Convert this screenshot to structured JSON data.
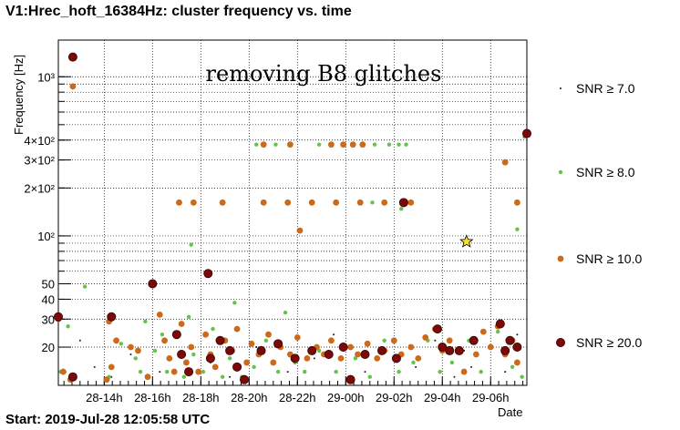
{
  "chart_data": {
    "type": "scatter",
    "title": "V1:Hrec_hoft_16384Hz: cluster frequency vs. time",
    "xlabel": "Date",
    "ylabel": "Frequency [Hz]",
    "start_label": "Start: 2019-Jul-28 12:05:58 UTC",
    "annotation": "removing  B8  glitches",
    "x_unit": "hours since start",
    "xlim": [
      0,
      19.4
    ],
    "ylim": [
      11.5,
      1700
    ],
    "yscale": "log",
    "grid": true,
    "legend_placement": "right",
    "x_ticks": [
      {
        "value": 1.9,
        "label": "28-14h"
      },
      {
        "value": 3.9,
        "label": "28-16h"
      },
      {
        "value": 5.9,
        "label": "28-18h"
      },
      {
        "value": 7.9,
        "label": "28-20h"
      },
      {
        "value": 9.9,
        "label": "28-22h"
      },
      {
        "value": 11.9,
        "label": "29-00h"
      },
      {
        "value": 13.9,
        "label": "29-02h"
      },
      {
        "value": 15.9,
        "label": "29-04h"
      },
      {
        "value": 17.9,
        "label": "29-06h"
      }
    ],
    "y_ticks": [
      {
        "value": 20,
        "label": "20"
      },
      {
        "value": 30,
        "label": "30"
      },
      {
        "value": 40,
        "label": "40"
      },
      {
        "value": 50,
        "label": "50"
      },
      {
        "value": 100,
        "label": "10²"
      },
      {
        "value": 200,
        "label": "2×10²"
      },
      {
        "value": 300,
        "label": "3×10²"
      },
      {
        "value": 400,
        "label": "4×10²"
      },
      {
        "value": 1000,
        "label": "10³"
      }
    ],
    "series": [
      {
        "name": "SNR ≥ 7.0",
        "color": "#1a1a1a",
        "marker_size": 1,
        "points": [
          [
            0.3,
            14
          ],
          [
            0.9,
            22
          ],
          [
            1.5,
            15
          ],
          [
            2.2,
            13
          ],
          [
            3.0,
            18
          ],
          [
            4.2,
            14
          ],
          [
            5.0,
            25
          ],
          [
            6.3,
            16
          ],
          [
            7.1,
            13
          ],
          [
            8.2,
            20
          ],
          [
            9.5,
            14
          ],
          [
            10.6,
            17
          ],
          [
            11.4,
            24
          ],
          [
            12.7,
            14
          ],
          [
            13.6,
            19
          ],
          [
            14.8,
            15
          ],
          [
            15.6,
            22
          ],
          [
            16.4,
            13
          ],
          [
            17.3,
            18
          ],
          [
            18.5,
            14
          ],
          [
            19.0,
            24
          ],
          [
            16.8,
            19
          ],
          [
            17.1,
            15
          ]
        ]
      },
      {
        "name": "SNR ≥ 8.0",
        "color": "#66c150",
        "marker_size": 2.2,
        "points": [
          [
            1.1,
            48
          ],
          [
            0.1,
            14
          ],
          [
            0.4,
            27
          ],
          [
            0.6,
            13
          ],
          [
            2.1,
            13
          ],
          [
            2.6,
            21
          ],
          [
            3.2,
            17
          ],
          [
            3.4,
            14
          ],
          [
            3.6,
            29
          ],
          [
            4.0,
            19
          ],
          [
            4.3,
            24
          ],
          [
            4.5,
            14
          ],
          [
            5.2,
            13
          ],
          [
            5.4,
            31
          ],
          [
            5.6,
            18
          ],
          [
            6.0,
            14
          ],
          [
            6.4,
            26
          ],
          [
            6.8,
            13
          ],
          [
            7.1,
            17
          ],
          [
            7.3,
            38
          ],
          [
            7.6,
            13
          ],
          [
            8.1,
            15
          ],
          [
            8.6,
            22
          ],
          [
            9.1,
            14
          ],
          [
            9.4,
            33
          ],
          [
            9.8,
            16
          ],
          [
            10.2,
            14
          ],
          [
            10.8,
            19
          ],
          [
            11.5,
            14
          ],
          [
            12.3,
            17
          ],
          [
            12.9,
            13
          ],
          [
            13.5,
            22
          ],
          [
            14.1,
            14
          ],
          [
            14.7,
            16
          ],
          [
            15.3,
            22
          ],
          [
            15.8,
            14
          ],
          [
            16.3,
            16
          ],
          [
            17.0,
            22
          ],
          [
            17.5,
            14
          ],
          [
            18.2,
            25
          ],
          [
            18.8,
            15
          ],
          [
            19.2,
            13
          ],
          [
            5.5,
            88
          ],
          [
            8.2,
            375
          ],
          [
            9.0,
            375
          ],
          [
            10.8,
            375
          ],
          [
            13.1,
            375
          ],
          [
            13.7,
            375
          ],
          [
            14.1,
            375
          ],
          [
            14.4,
            375
          ],
          [
            13.0,
            162
          ],
          [
            14.2,
            148
          ],
          [
            19.0,
            110
          ],
          [
            19.3,
            420
          ]
        ]
      },
      {
        "name": "SNR ≥ 10.0",
        "color": "#cc6a1a",
        "marker_size": 3.4,
        "points": [
          [
            0.6,
            870
          ],
          [
            0.0,
            30
          ],
          [
            0.2,
            14
          ],
          [
            0.5,
            12.5
          ],
          [
            2.0,
            12.5
          ],
          [
            2.2,
            15
          ],
          [
            2.4,
            22
          ],
          [
            2.1,
            29
          ],
          [
            3.0,
            20
          ],
          [
            3.3,
            19
          ],
          [
            3.7,
            13
          ],
          [
            4.2,
            32
          ],
          [
            4.4,
            22
          ],
          [
            4.6,
            17
          ],
          [
            4.8,
            14
          ],
          [
            5.1,
            28
          ],
          [
            5.3,
            16
          ],
          [
            5.5,
            20
          ],
          [
            5.8,
            14
          ],
          [
            6.1,
            24
          ],
          [
            6.3,
            18
          ],
          [
            6.5,
            15
          ],
          [
            6.9,
            22
          ],
          [
            7.2,
            19
          ],
          [
            7.4,
            26
          ],
          [
            7.8,
            16
          ],
          [
            8.0,
            21
          ],
          [
            8.3,
            18
          ],
          [
            8.7,
            24
          ],
          [
            8.9,
            16
          ],
          [
            9.2,
            20
          ],
          [
            9.6,
            18
          ],
          [
            9.9,
            23
          ],
          [
            10.3,
            17
          ],
          [
            10.7,
            20
          ],
          [
            11.0,
            18
          ],
          [
            11.3,
            22
          ],
          [
            11.7,
            17
          ],
          [
            12.1,
            20
          ],
          [
            12.4,
            18
          ],
          [
            12.8,
            21
          ],
          [
            13.2,
            17
          ],
          [
            13.5,
            19
          ],
          [
            13.9,
            22
          ],
          [
            14.2,
            18
          ],
          [
            14.6,
            20
          ],
          [
            14.9,
            17
          ],
          [
            15.2,
            23
          ],
          [
            15.6,
            26
          ],
          [
            15.9,
            19
          ],
          [
            16.2,
            22
          ],
          [
            16.8,
            14
          ],
          [
            17.3,
            18
          ],
          [
            17.6,
            25
          ],
          [
            17.9,
            20
          ],
          [
            18.2,
            27
          ],
          [
            18.5,
            18
          ],
          [
            18.8,
            22
          ],
          [
            19.0,
            16
          ],
          [
            5.0,
            162
          ],
          [
            5.6,
            162
          ],
          [
            6.8,
            162
          ],
          [
            8.5,
            162
          ],
          [
            9.5,
            162
          ],
          [
            10.5,
            162
          ],
          [
            11.5,
            162
          ],
          [
            12.5,
            162
          ],
          [
            13.5,
            162
          ],
          [
            14.6,
            162
          ],
          [
            10.0,
            108
          ],
          [
            8.5,
            375
          ],
          [
            9.6,
            375
          ],
          [
            11.3,
            375
          ],
          [
            11.8,
            375
          ],
          [
            12.2,
            375
          ],
          [
            12.6,
            375
          ],
          [
            18.5,
            290
          ],
          [
            19.0,
            162
          ]
        ]
      },
      {
        "name": "SNR ≥ 20.0",
        "color": "#7a0a0a",
        "marker_size": 4.6,
        "points": [
          [
            0.6,
            1330
          ],
          [
            19.4,
            440
          ],
          [
            3.9,
            50
          ],
          [
            6.2,
            58
          ],
          [
            0.0,
            31
          ],
          [
            0.6,
            13
          ],
          [
            2.2,
            31
          ],
          [
            4.9,
            24
          ],
          [
            5.1,
            18
          ],
          [
            5.4,
            14
          ],
          [
            6.3,
            17
          ],
          [
            6.7,
            22
          ],
          [
            7.1,
            19
          ],
          [
            7.4,
            15
          ],
          [
            7.7,
            12.5
          ],
          [
            8.4,
            19
          ],
          [
            9.1,
            21
          ],
          [
            9.8,
            17
          ],
          [
            10.5,
            19
          ],
          [
            11.2,
            18
          ],
          [
            11.8,
            20
          ],
          [
            12.1,
            12.5
          ],
          [
            12.7,
            18
          ],
          [
            13.4,
            19
          ],
          [
            14.0,
            17
          ],
          [
            14.3,
            162
          ],
          [
            15.7,
            26
          ],
          [
            15.9,
            20
          ],
          [
            16.2,
            19
          ],
          [
            16.6,
            19
          ],
          [
            17.2,
            22
          ],
          [
            18.3,
            28
          ],
          [
            18.5,
            19
          ],
          [
            18.7,
            22
          ],
          [
            19.0,
            20
          ]
        ]
      }
    ],
    "special_markers": [
      {
        "type": "star",
        "x": 16.9,
        "y": 92,
        "color": "#ffe021"
      }
    ]
  }
}
